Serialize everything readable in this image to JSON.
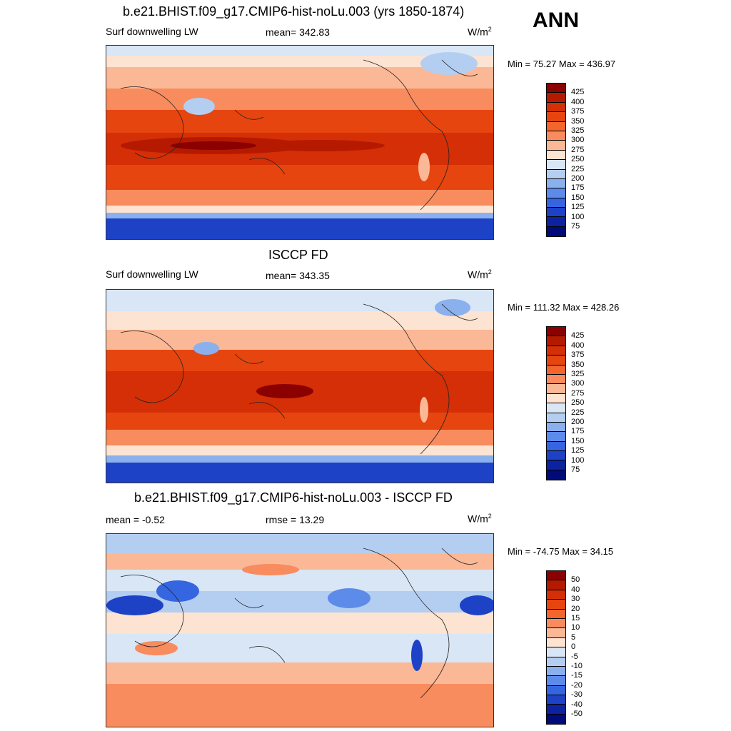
{
  "season": "ANN",
  "units_base": "W/m",
  "units_exp": "2",
  "panels": [
    {
      "title": "b.e21.BHIST.f09_g17.CMIP6-hist-noLu.003 (yrs 1850-1874)",
      "variable": "Surf downwelling LW",
      "stat": "mean= 342.83",
      "minmax": "Min =  75.27 Max = 436.97"
    },
    {
      "title": "ISCCP FD",
      "variable": "Surf downwelling LW",
      "stat": "mean= 343.35",
      "minmax": "Min = 111.32 Max = 428.26"
    },
    {
      "title": "b.e21.BHIST.f09_g17.CMIP6-hist-noLu.003 - ISCCP FD",
      "stat_left": "mean =  -0.52",
      "stat": "rmse =  13.29",
      "minmax": "Min = -74.75 Max =  34.15"
    }
  ],
  "colorbar_abs": {
    "labels": [
      "425",
      "400",
      "375",
      "350",
      "325",
      "300",
      "275",
      "250",
      "225",
      "200",
      "175",
      "150",
      "125",
      "100",
      "75"
    ],
    "colors": [
      "#8b0000",
      "#b51a00",
      "#d42f06",
      "#e6450f",
      "#f2652c",
      "#f88c5e",
      "#fbb896",
      "#fde3d1",
      "#d8e6f6",
      "#b4cef2",
      "#8bb0ee",
      "#5d8bea",
      "#3565e0",
      "#1d42c6",
      "#0c229e",
      "#000a78"
    ]
  },
  "colorbar_diff": {
    "labels": [
      "50",
      "40",
      "30",
      "20",
      "15",
      "10",
      "5",
      "0",
      "-5",
      "-10",
      "-15",
      "-20",
      "-30",
      "-40",
      "-50"
    ],
    "colors": [
      "#8b0000",
      "#b51a00",
      "#d42f06",
      "#e6450f",
      "#f2652c",
      "#f88c5e",
      "#fbb896",
      "#fde3d1",
      "#d8e6f6",
      "#b4cef2",
      "#8bb0ee",
      "#5d8bea",
      "#3565e0",
      "#1d42c6",
      "#0c229e",
      "#000a78"
    ]
  }
}
